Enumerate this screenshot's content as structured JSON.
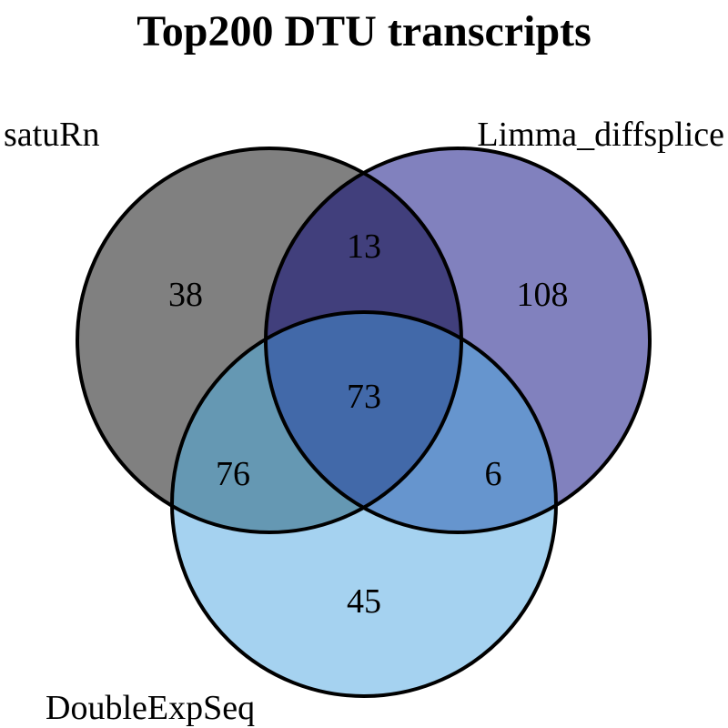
{
  "title": "Top200 DTU transcripts",
  "sets": [
    {
      "name": "satuRn",
      "color": "#808080"
    },
    {
      "name": "Limma_diffsplice",
      "color": "#8181BE"
    },
    {
      "name": "DoubleExpSeq",
      "color": "#A5D2F0"
    }
  ],
  "regions": {
    "satuRn_only": "38",
    "limma_only": "108",
    "doubleexpseq_only": "45",
    "satuRn_limma": "13",
    "satuRn_doubleexpseq": "76",
    "limma_doubleexpseq": "6",
    "all_three": "73"
  }
}
